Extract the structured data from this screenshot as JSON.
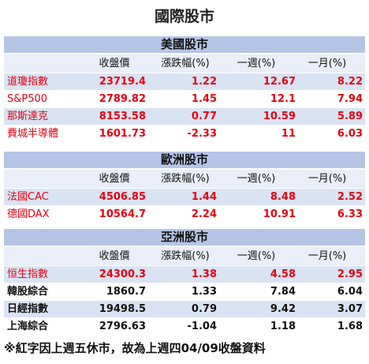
{
  "title": "國際股市",
  "columns": [
    "收盤價",
    "漲跌幅(%)",
    "一週(%)",
    "一月(%)"
  ],
  "highlight_color": "#e60012",
  "sections": [
    {
      "title": "美國股市",
      "rows": [
        {
          "name": "道瓊指數",
          "cells": [
            "23719.4",
            "1.22",
            "12.67",
            "8.22"
          ],
          "highlight": true
        },
        {
          "name": "S&P500",
          "cells": [
            "2789.82",
            "1.45",
            "12.1",
            "7.94"
          ],
          "highlight": true
        },
        {
          "name": "那斯達克",
          "cells": [
            "8153.58",
            "0.77",
            "10.59",
            "5.89"
          ],
          "highlight": true
        },
        {
          "name": "費城半導體",
          "cells": [
            "1601.73",
            "-2.33",
            "11",
            "6.03"
          ],
          "highlight": true
        }
      ]
    },
    {
      "title": "歐洲股市",
      "rows": [
        {
          "name": "法國CAC",
          "cells": [
            "4506.85",
            "1.44",
            "8.48",
            "2.52"
          ],
          "highlight": true
        },
        {
          "name": "德國DAX",
          "cells": [
            "10564.7",
            "2.24",
            "10.91",
            "6.33"
          ],
          "highlight": true
        }
      ]
    },
    {
      "title": "亞洲股市",
      "rows": [
        {
          "name": "恒生指數",
          "cells": [
            "24300.3",
            "1.38",
            "4.58",
            "2.95"
          ],
          "highlight": true
        },
        {
          "name": "韓股綜合",
          "cells": [
            "1860.7",
            "1.33",
            "7.84",
            "6.04"
          ],
          "highlight": false
        },
        {
          "name": "日經指數",
          "cells": [
            "19498.5",
            "0.79",
            "9.42",
            "3.07"
          ],
          "highlight": false
        },
        {
          "name": "上海綜合",
          "cells": [
            "2796.63",
            "-1.04",
            "1.18",
            "1.68"
          ],
          "highlight": false
        }
      ]
    }
  ],
  "note": "※紅字因上週五休市，故為上週四04/09收盤資料"
}
